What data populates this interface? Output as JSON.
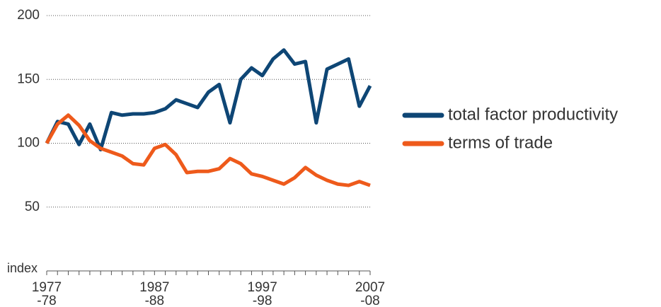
{
  "chart_data": {
    "type": "line",
    "y_label": "index",
    "categories": [
      "1977\n-78",
      null,
      null,
      null,
      null,
      null,
      null,
      null,
      null,
      null,
      "1987\n-88",
      null,
      null,
      null,
      null,
      null,
      null,
      null,
      null,
      null,
      "1997\n-98",
      null,
      null,
      null,
      null,
      null,
      null,
      null,
      null,
      null,
      "2007\n-08"
    ],
    "series": [
      {
        "name": "total factor productivity",
        "color": "#0e4675",
        "values": [
          100,
          117,
          115,
          99,
          115,
          95,
          124,
          122,
          123,
          123,
          124,
          127,
          134,
          131,
          128,
          140,
          146,
          116,
          150,
          159,
          153,
          166,
          173,
          162,
          164,
          116,
          158,
          162,
          166,
          129,
          145
        ]
      },
      {
        "name": "terms of trade",
        "color": "#ee5a1b",
        "values": [
          100,
          115,
          122,
          114,
          102,
          96,
          93,
          90,
          84,
          83,
          96,
          99,
          91,
          77,
          78,
          78,
          80,
          88,
          84,
          76,
          74,
          71,
          68,
          73,
          81,
          75,
          71,
          68,
          67,
          70,
          67
        ]
      }
    ],
    "ylim": [
      0,
      200
    ],
    "yticks": [
      50,
      100,
      150,
      200
    ],
    "grid": true,
    "legend": "right"
  }
}
